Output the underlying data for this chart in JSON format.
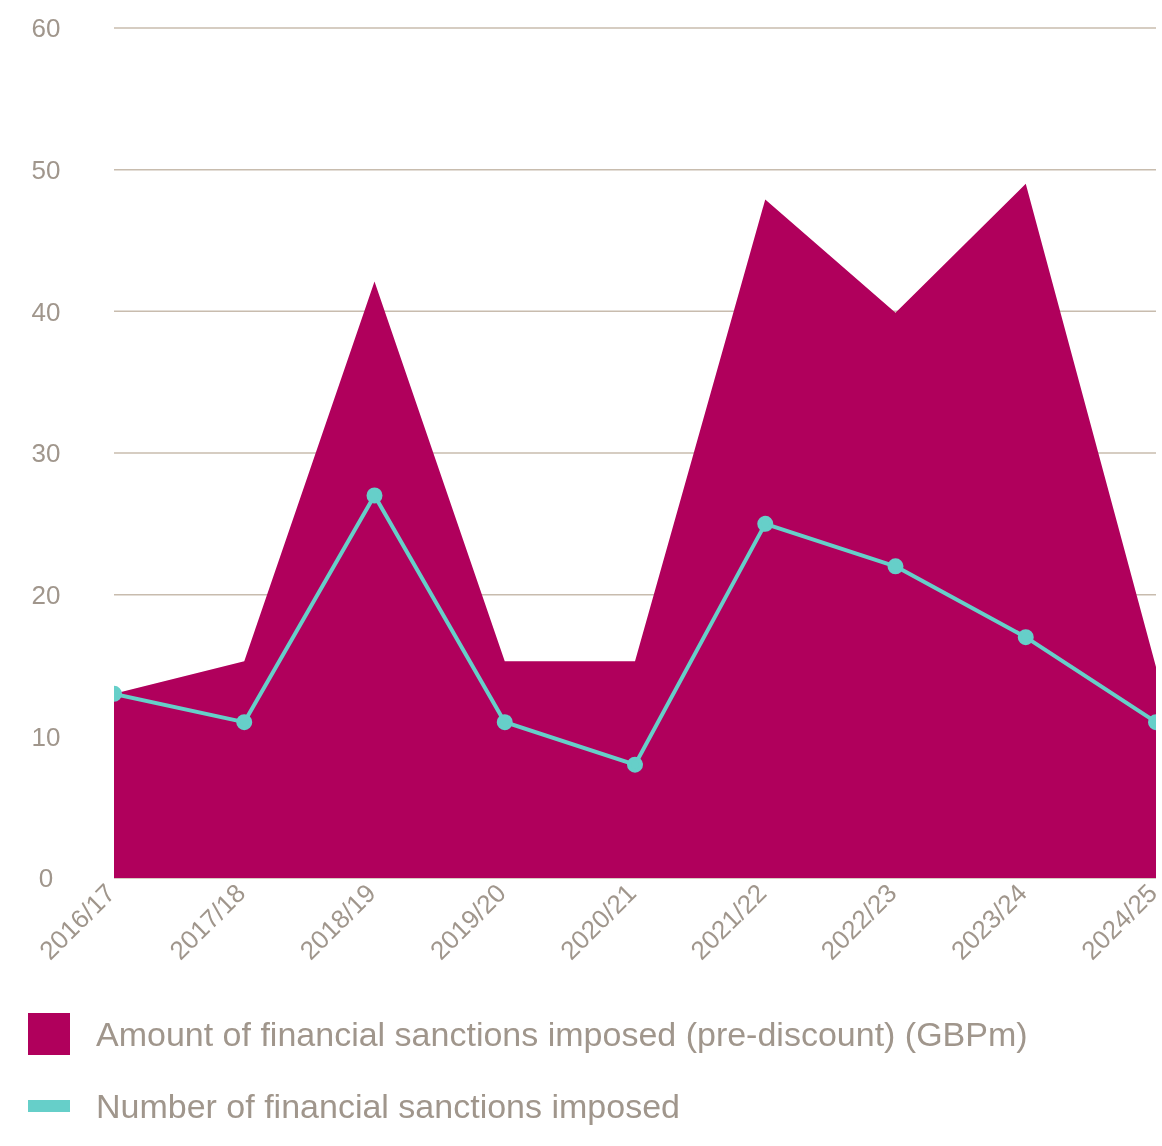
{
  "chart_data": {
    "type": "area",
    "categories": [
      "2016/17",
      "2017/18",
      "2018/19",
      "2019/20",
      "2020/21",
      "2021/22",
      "2022/23",
      "2023/24",
      "2024/25"
    ],
    "series": [
      {
        "name": "Amount of financial sanctions imposed (pre-discount) (GBPm)",
        "color": "#b0005c",
        "values": [
          13,
          15.3,
          42.1,
          15.3,
          15.3,
          47.9,
          39.9,
          49,
          14.9
        ]
      },
      {
        "name": "Number of financial sanctions imposed",
        "type": "line",
        "color": "#66cfc9",
        "values": [
          13,
          11,
          27,
          11,
          8,
          25,
          22,
          17,
          11
        ],
        "marker": "circle"
      }
    ],
    "ylim": [
      0,
      60
    ],
    "yticks": [
      0,
      10,
      20,
      30,
      40,
      50,
      60
    ],
    "grid": "y",
    "legend": "bottom"
  }
}
